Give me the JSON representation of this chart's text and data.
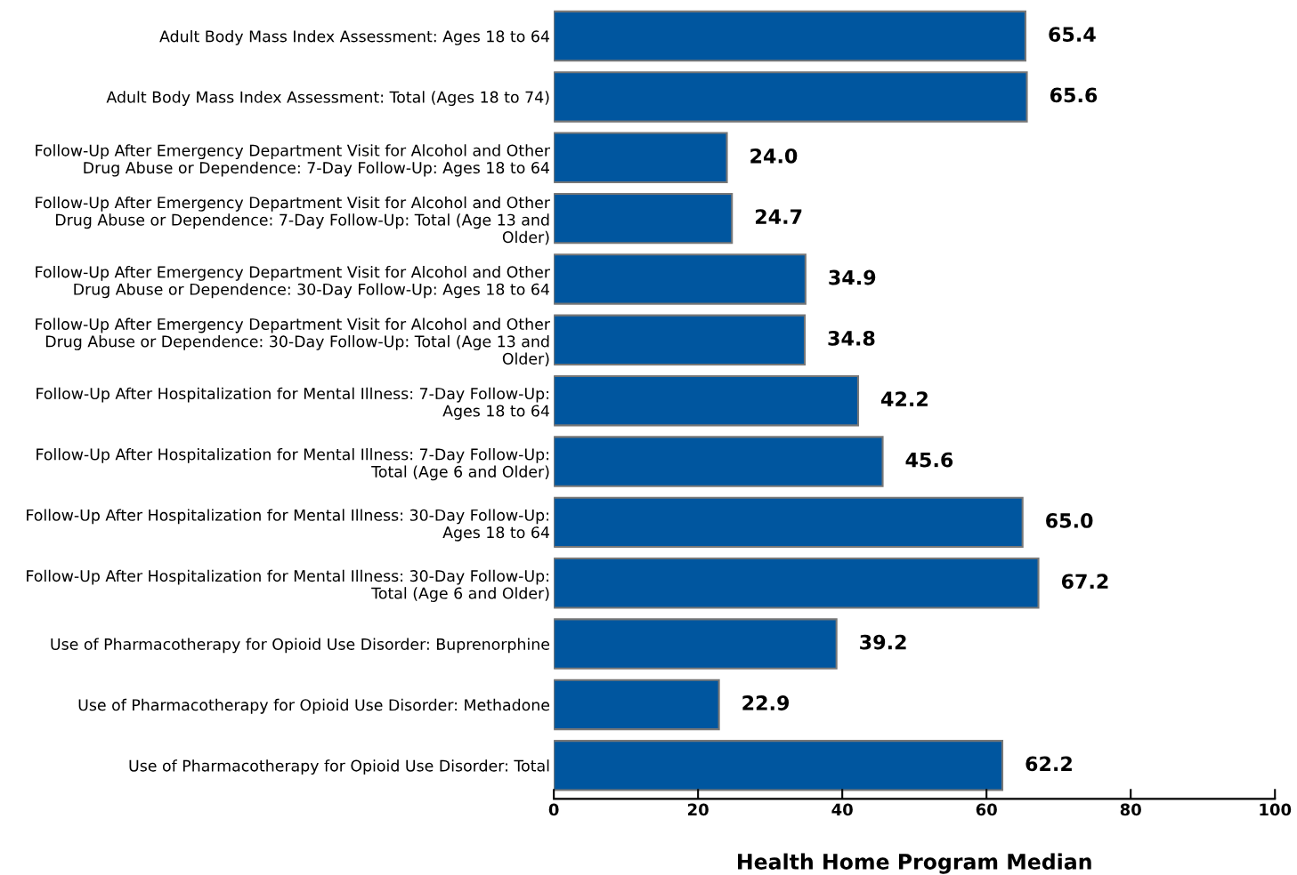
{
  "chart_data": {
    "type": "bar",
    "orientation": "horizontal",
    "xlabel": "Health Home Program Median",
    "categories": [
      "Adult Body Mass Index Assessment: Ages 18 to 64",
      "Adult Body Mass Index Assessment: Total (Ages 18 to 74)",
      "Follow-Up After Emergency Department Visit for Alcohol and Other\nDrug Abuse or Dependence: 7-Day Follow-Up: Ages 18 to 64",
      "Follow-Up After Emergency Department Visit for Alcohol and Other\nDrug Abuse or Dependence: 7-Day Follow-Up: Total (Age 13 and\nOlder)",
      "Follow-Up After Emergency Department Visit for Alcohol and Other\nDrug Abuse or Dependence: 30-Day Follow-Up: Ages 18 to 64",
      "Follow-Up After Emergency Department Visit for Alcohol and Other\nDrug Abuse or Dependence: 30-Day Follow-Up: Total (Age 13 and\nOlder)",
      "Follow-Up After Hospitalization for Mental Illness: 7-Day Follow-Up:\nAges 18 to 64",
      "Follow-Up After Hospitalization for Mental Illness: 7-Day Follow-Up:\nTotal (Age 6 and Older)",
      "Follow-Up After Hospitalization for Mental Illness: 30-Day Follow-Up:\nAges 18 to 64",
      "Follow-Up After Hospitalization for Mental Illness: 30-Day Follow-Up:\nTotal (Age 6 and Older)",
      "Use of Pharmacotherapy for Opioid Use Disorder: Buprenorphine",
      "Use of Pharmacotherapy for Opioid Use Disorder: Methadone",
      "Use of Pharmacotherapy for Opioid Use Disorder: Total"
    ],
    "values": [
      65.4,
      65.6,
      24.0,
      24.7,
      34.9,
      34.8,
      42.2,
      45.6,
      65.0,
      67.2,
      39.2,
      22.9,
      62.2
    ],
    "value_labels": [
      "65.4",
      "65.6",
      "24.0",
      "24.7",
      "34.9",
      "34.8",
      "42.2",
      "45.6",
      "65.0",
      "67.2",
      "39.2",
      "22.9",
      "62.2"
    ],
    "color": "#00569f",
    "xlim": [
      0,
      100
    ],
    "xticks": [
      0,
      20,
      40,
      60,
      80,
      100
    ],
    "grid": false,
    "legend": false
  }
}
